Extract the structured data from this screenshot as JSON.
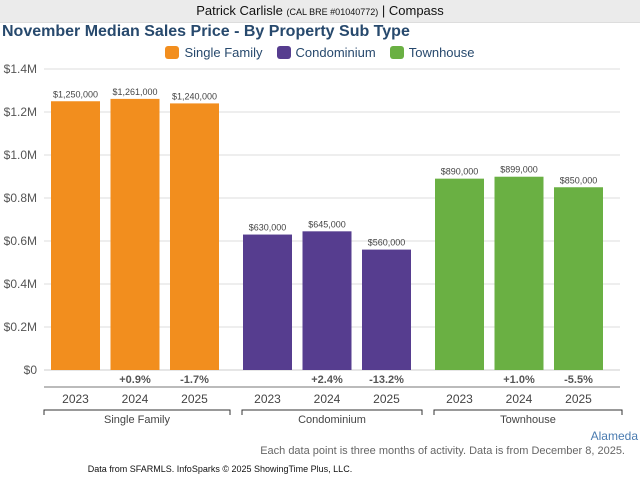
{
  "header": {
    "agent_name": "Patrick Carlisle",
    "license": "(CAL BRE #01040772)",
    "separator": "|",
    "brokerage": "Compass"
  },
  "colors": {
    "Single Family": "#f28e1e",
    "Condominium": "#563d8f",
    "Townhouse": "#6ab043",
    "title": "#27496d",
    "gridline": "#dddddd"
  },
  "chart_data": {
    "type": "bar",
    "title": "November Median Sales Price - By Property Sub Type",
    "legend": [
      "Single Family",
      "Condominium",
      "Townhouse"
    ],
    "legend_placement": "top-center",
    "xlabel": "",
    "ylabel": "",
    "ylim": [
      0,
      1400000
    ],
    "yticks": [
      0,
      200000,
      400000,
      600000,
      800000,
      1000000,
      1200000,
      1400000
    ],
    "ytick_labels": [
      "$0",
      "$0.2M",
      "$0.4M",
      "$0.6M",
      "$0.8M",
      "$1.0M",
      "$1.2M",
      "$1.4M"
    ],
    "grid": true,
    "categories": [
      "2023",
      "2024",
      "2025"
    ],
    "groups": [
      {
        "name": "Single Family",
        "values": [
          1250000,
          1261000,
          1240000
        ],
        "value_labels": [
          "$1,250,000",
          "$1,261,000",
          "$1,240,000"
        ],
        "changes": [
          "",
          "+0.9%",
          "-1.7%"
        ]
      },
      {
        "name": "Condominium",
        "values": [
          630000,
          645000,
          560000
        ],
        "value_labels": [
          "$630,000",
          "$645,000",
          "$560,000"
        ],
        "changes": [
          "",
          "+2.4%",
          "-13.2%"
        ]
      },
      {
        "name": "Townhouse",
        "values": [
          890000,
          899000,
          850000
        ],
        "value_labels": [
          "$890,000",
          "$899,000",
          "$850,000"
        ],
        "changes": [
          "",
          "+1.0%",
          "-5.5%"
        ]
      }
    ]
  },
  "footer": {
    "region": "Alameda",
    "note": "Each data point is three months of activity. Data is from December 8, 2025.",
    "credit": "Data from SFARMLS. InfoSparks © 2025 ShowingTime Plus, LLC."
  }
}
